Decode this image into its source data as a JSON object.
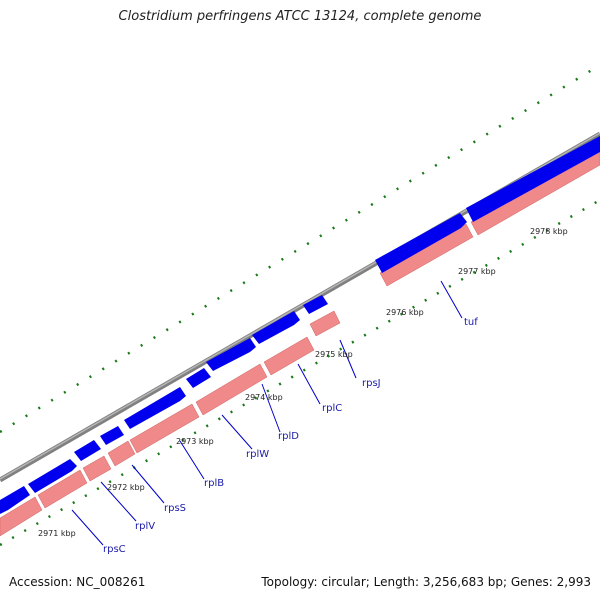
{
  "title": "Clostridium perfringens ATCC 13124, complete genome",
  "footer": {
    "accession": "Accession: NC_008261",
    "summary": "Topology: circular; Length: 3,256,683 bp; Genes: 2,993"
  },
  "colors": {
    "backbone": "#808080",
    "gene_forward": "#0000ee",
    "gene_pink": "#f08a8a",
    "ticks": "#1a7a1a",
    "label_line": "#0000cc"
  },
  "kbp_labels": [
    "2971 kbp",
    "2972 kbp",
    "2973 kbp",
    "2974 kbp",
    "2975 kbp",
    "2976 kbp",
    "2977 kbp",
    "2978 kbp"
  ],
  "genes": [
    "rpsC",
    "rplV",
    "rpsS",
    "rplB",
    "rplW",
    "rplD",
    "rplC",
    "rpsJ",
    "tuf"
  ]
}
